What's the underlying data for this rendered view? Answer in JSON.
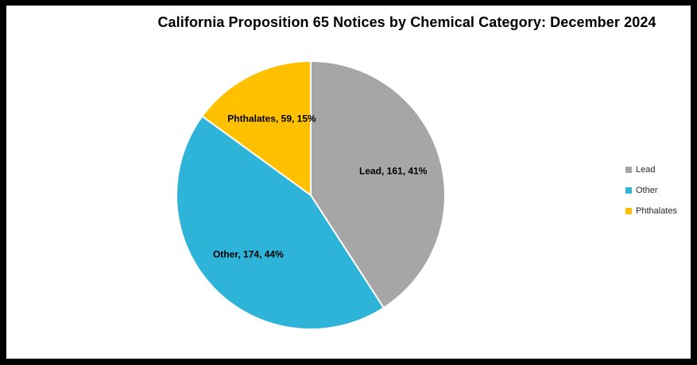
{
  "chart_data": {
    "type": "pie",
    "title": "California Proposition 65 Notices by Chemical Category: December 2024",
    "categories": [
      "Lead",
      "Other",
      "Phthalates"
    ],
    "values": [
      161,
      174,
      59
    ],
    "percents": [
      41,
      44,
      15
    ],
    "slice_labels": [
      "Lead, 161, 41%",
      "Other, 174, 44%",
      "Phthalates, 59, 15%"
    ],
    "colors": [
      "#A6A6A6",
      "#2FB4D9",
      "#FFC000"
    ],
    "start_angle_deg": 0,
    "direction": "clockwise",
    "legend_position": "right",
    "legend": [
      "Lead",
      "Other",
      "Phthalates"
    ]
  },
  "style": {
    "background": "#000000",
    "panel_background": "#FFFFFF",
    "title_color": "#000000",
    "label_color": "#000000",
    "legend_text_color": "#262626",
    "slice_border_color": "#FFFFFF"
  }
}
